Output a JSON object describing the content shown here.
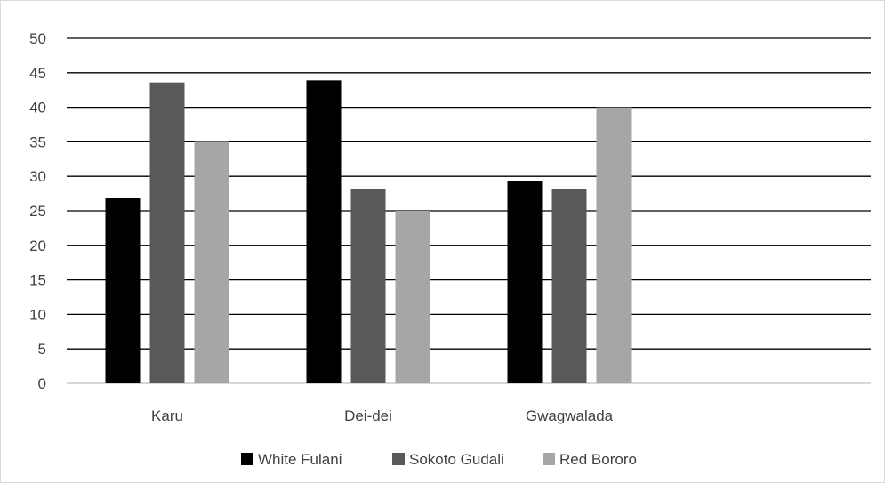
{
  "chart_data": {
    "type": "bar",
    "title": "",
    "xlabel": "",
    "ylabel": "",
    "categories": [
      "Karu",
      "Dei-dei",
      "Gwagwalada",
      ""
    ],
    "ylim": [
      0,
      50
    ],
    "yticks": [
      0,
      5,
      10,
      15,
      20,
      25,
      30,
      35,
      40,
      45,
      50
    ],
    "grid": true,
    "legend_position": "bottom",
    "series": [
      {
        "name": "White Fulani",
        "color": "#000000",
        "values": [
          26.8,
          43.9,
          29.3,
          null
        ]
      },
      {
        "name": "Sokoto Gudali",
        "color": "#595959",
        "values": [
          43.6,
          28.2,
          28.2,
          null
        ]
      },
      {
        "name": "Red Bororo",
        "color": "#a6a6a6",
        "values": [
          35.0,
          25.0,
          40.0,
          null
        ]
      }
    ]
  }
}
